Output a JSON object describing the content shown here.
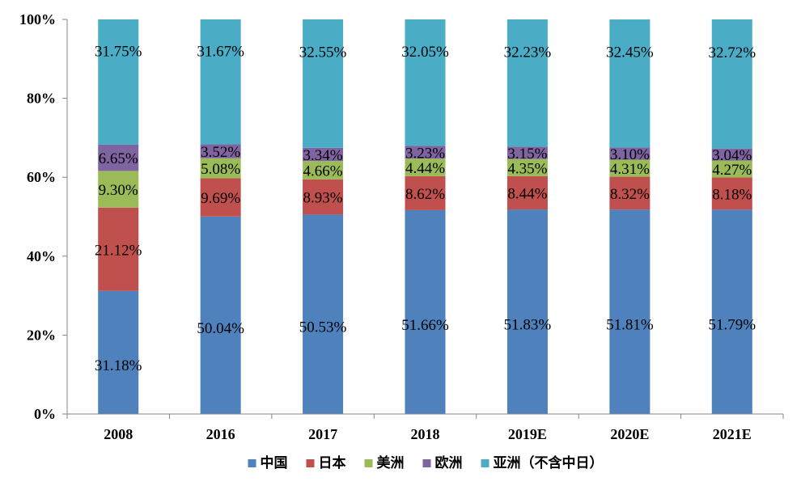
{
  "chart_data": {
    "type": "bar",
    "stacked": true,
    "categories": [
      "2008",
      "2016",
      "2017",
      "2018",
      "2019E",
      "2020E",
      "2021E"
    ],
    "series": [
      {
        "name": "中国",
        "color": "#4F81BD",
        "values": [
          31.18,
          50.04,
          50.53,
          51.66,
          51.83,
          51.81,
          51.79
        ],
        "labels": [
          "31.18%",
          "50.04%",
          "50.53%",
          "51.66%",
          "51.83%",
          "51.81%",
          "51.79%"
        ]
      },
      {
        "name": "日本",
        "color": "#C0504D",
        "values": [
          21.12,
          9.69,
          8.93,
          8.62,
          8.44,
          8.32,
          8.18
        ],
        "labels": [
          "21.12%",
          "9.69%",
          "8.93%",
          "8.62%",
          "8.44%",
          "8.32%",
          "8.18%"
        ]
      },
      {
        "name": "美洲",
        "color": "#9BBB59",
        "values": [
          9.3,
          5.08,
          4.66,
          4.44,
          4.35,
          4.31,
          4.27
        ],
        "labels": [
          "9.30%",
          "5.08%",
          "4.66%",
          "4.44%",
          "4.35%",
          "4.31%",
          "4.27%"
        ]
      },
      {
        "name": "欧洲",
        "color": "#8064A2",
        "values": [
          6.65,
          3.52,
          3.34,
          3.23,
          3.15,
          3.1,
          3.04
        ],
        "labels": [
          "6.65%",
          "3.52%",
          "3.34%",
          "3.23%",
          "3.15%",
          "3.10%",
          "3.04%"
        ]
      },
      {
        "name": "亚洲（不含中日）",
        "color": "#4BACC6",
        "values": [
          31.75,
          31.67,
          32.55,
          32.05,
          32.23,
          32.45,
          32.72
        ],
        "labels": [
          "31.75%",
          "31.67%",
          "32.55%",
          "32.05%",
          "32.23%",
          "32.45%",
          "32.72%"
        ]
      }
    ],
    "ylim": [
      0,
      100
    ],
    "yticks": [
      "0%",
      "20%",
      "40%",
      "60%",
      "80%",
      "100%"
    ],
    "ytick_values": [
      0,
      20,
      40,
      60,
      80,
      100
    ],
    "grid": false,
    "legend_position": "bottom"
  }
}
